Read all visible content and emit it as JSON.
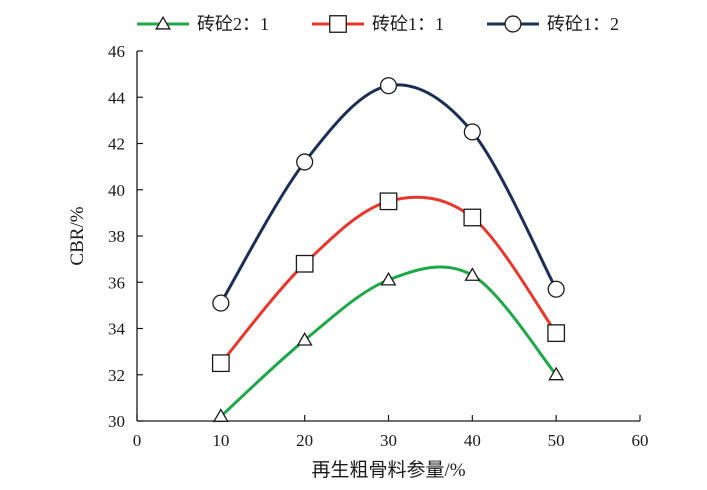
{
  "chart_data": {
    "type": "line",
    "xlabel": "再生粗骨料参量/%",
    "ylabel": "CBR/%",
    "xlim": [
      0,
      60
    ],
    "ylim": [
      30,
      46
    ],
    "xticks": [
      0,
      10,
      20,
      30,
      40,
      50,
      60
    ],
    "yticks": [
      30,
      32,
      34,
      36,
      38,
      40,
      42,
      44,
      46
    ],
    "grid": false,
    "legend": "top",
    "x": [
      10,
      20,
      30,
      40,
      50
    ],
    "series": [
      {
        "name": "砖砼2：1",
        "values": [
          30.2,
          33.5,
          36.1,
          36.3,
          32.0
        ],
        "color": "#1ea84a",
        "marker": "triangle"
      },
      {
        "name": "砖砼1：1",
        "values": [
          32.5,
          36.8,
          39.5,
          38.8,
          33.8
        ],
        "color": "#e8382c",
        "marker": "square"
      },
      {
        "name": "砖砼1：2",
        "values": [
          35.1,
          41.2,
          44.5,
          42.5,
          35.7
        ],
        "color": "#1b2f55",
        "marker": "circle"
      }
    ]
  }
}
